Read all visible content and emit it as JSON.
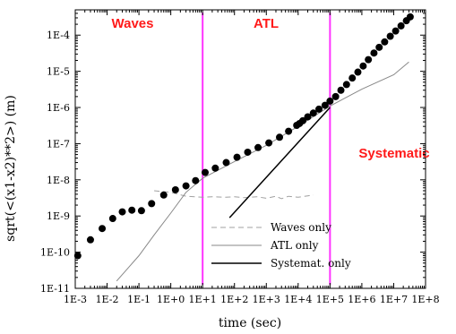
{
  "chart_data": {
    "type": "line",
    "xscale": "log",
    "yscale": "log",
    "xlabel": "time (sec)",
    "ylabel": "sqrt(<(x1-x2)**2>)  (m)",
    "xlim": [
      0.001,
      100000000
    ],
    "ylim": [
      1e-11,
      0.0005
    ],
    "x_ticks": [
      0.001,
      0.01,
      0.1,
      1,
      10,
      100,
      1000,
      10000,
      100000,
      1000000,
      10000000,
      100000000
    ],
    "x_tick_labels": [
      "1E-3",
      "1E-2",
      "1E-1",
      "1E+0",
      "1E+1",
      "1E+2",
      "1E+3",
      "1E+4",
      "1E+5",
      "1E+6",
      "1E+7",
      "1E+8"
    ],
    "y_ticks": [
      1e-11,
      1e-10,
      1e-09,
      1e-08,
      1e-07,
      1e-06,
      1e-05,
      0.0001
    ],
    "y_tick_labels": [
      "1E-11",
      "1E-10",
      "1E-9",
      "1E-8",
      "1E-7",
      "1E-6",
      "1E-5",
      "1E-4"
    ],
    "grid": false,
    "legend_position": "bottom-center",
    "region_dividers": [
      10,
      100000
    ],
    "region_labels": [
      "Waves",
      "ATL",
      "Systematic"
    ],
    "region_color": "#ff1a1a",
    "divider_color": "#ff33ff",
    "series": [
      {
        "name": "Waves only",
        "style": "dashed",
        "color": "#a0a0a0",
        "x": [
          0.3,
          1,
          3,
          10,
          20,
          50,
          100,
          200,
          300,
          500,
          1000,
          2000,
          3000,
          5000,
          10000,
          20000,
          30000
        ],
        "y": [
          5e-09,
          4.5e-09,
          3.5e-09,
          3.3e-09,
          3.4e-09,
          3.3e-09,
          3.4e-09,
          3.2e-09,
          3.3e-09,
          3.4e-09,
          3.1e-09,
          3.5e-09,
          3e-09,
          3.5e-09,
          3.3e-09,
          3.6e-09,
          3.8e-09
        ]
      },
      {
        "name": "ATL only",
        "style": "solid",
        "color": "#888888",
        "x": [
          0.02,
          0.05,
          0.1,
          0.3,
          1,
          3,
          10,
          100,
          1000,
          10000,
          100000,
          1000000,
          10000000,
          30000000
        ],
        "y": [
          1.6e-11,
          4e-11,
          8e-11,
          3e-10,
          1.2e-09,
          4.5e-09,
          1.1e-08,
          3.2e-08,
          9e-08,
          3e-07,
          1.1e-06,
          3.2e-06,
          8e-06,
          1.8e-05
        ]
      },
      {
        "name": "Systemat. only",
        "style": "solid",
        "color": "#000000",
        "x": [
          70,
          100000
        ],
        "y": [
          9e-10,
          1e-06
        ]
      },
      {
        "name": "",
        "style": "markers",
        "color": "#000000",
        "x": [
          0.0012,
          0.003,
          0.007,
          0.015,
          0.03,
          0.06,
          0.12,
          0.25,
          0.6,
          1.4,
          3,
          6,
          12,
          25,
          55,
          120,
          260,
          550,
          1200,
          2600,
          5000,
          9000,
          11000,
          14000,
          20000,
          30000,
          45000,
          70000,
          100000,
          150000,
          220000,
          330000,
          500000,
          750000,
          1100000,
          1600000,
          2400000,
          3500000,
          5200000,
          7800000,
          11500000,
          17000000,
          25000000,
          33000000
        ],
        "y": [
          8e-11,
          2.2e-10,
          4.5e-10,
          8.5e-10,
          1.3e-09,
          1.45e-09,
          1.4e-09,
          2.2e-09,
          3.8e-09,
          5.3e-09,
          6.8e-09,
          9.5e-09,
          1.6e-08,
          2.1e-08,
          3e-08,
          4.2e-08,
          5.8e-08,
          7.8e-08,
          1.05e-07,
          1.5e-07,
          2.2e-07,
          3.2e-07,
          3.6e-07,
          4.3e-07,
          5.5e-07,
          7e-07,
          9e-07,
          1.15e-06,
          1.5e-06,
          2e-06,
          3e-06,
          4.3e-06,
          6.5e-06,
          9.5e-06,
          1.4e-05,
          2.1e-05,
          3.2e-05,
          4.6e-05,
          6.5e-05,
          9.3e-05,
          0.00013,
          0.00018,
          0.00025,
          0.00032
        ]
      }
    ]
  }
}
